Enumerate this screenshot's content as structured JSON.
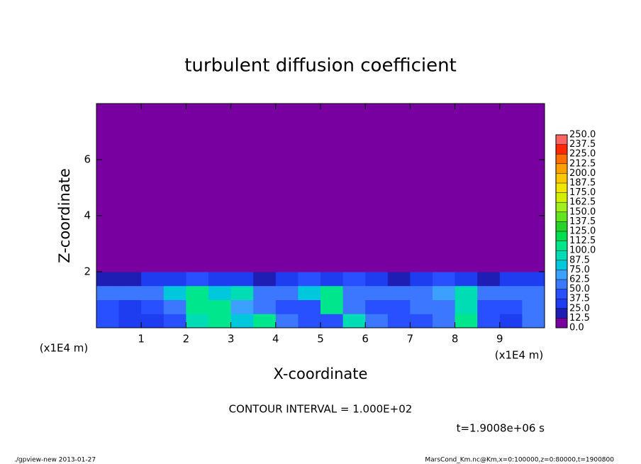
{
  "chart_data": {
    "type": "heatmap",
    "title": "turbulent diffusion coefficient",
    "x_label": "X-coordinate",
    "y_label": "Z-coordinate",
    "x_unit": "(x1E4 m)",
    "y_unit": "(x1E4 m)",
    "annotation": "CONTOUR INTERVAL = 1.000E+02",
    "time_label": "t=1.9008e+06 s",
    "footer_left": "./gpview-new  2013-01-27",
    "footer_right": "MarsCond_Km.nc@Km,x=0:100000,z=0:80000,t=1900800",
    "xlim": [
      0,
      10
    ],
    "ylim": [
      0,
      8
    ],
    "xticks": [
      1,
      2,
      3,
      4,
      5,
      6,
      7,
      8,
      9
    ],
    "yticks": [
      2,
      4,
      6
    ],
    "x": [
      0.25,
      0.75,
      1.25,
      1.75,
      2.25,
      2.75,
      3.25,
      3.75,
      4.25,
      4.75,
      5.25,
      5.75,
      6.25,
      6.75,
      7.25,
      7.75,
      8.25,
      8.75,
      9.25,
      9.75
    ],
    "y": [
      0.25,
      0.75,
      1.25,
      1.75,
      2.25,
      2.75,
      3.25,
      3.75,
      4.25,
      4.75,
      5.25,
      5.75,
      6.25,
      6.75,
      7.25,
      7.75
    ],
    "z": [
      [
        40,
        30,
        30,
        45,
        90,
        110,
        80,
        100,
        50,
        40,
        45,
        90,
        50,
        45,
        40,
        50,
        100,
        40,
        35,
        50
      ],
      [
        45,
        35,
        40,
        60,
        110,
        100,
        70,
        50,
        40,
        45,
        100,
        60,
        45,
        40,
        50,
        55,
        90,
        45,
        40,
        55
      ],
      [
        60,
        55,
        60,
        80,
        100,
        80,
        90,
        60,
        55,
        80,
        110,
        55,
        50,
        55,
        60,
        70,
        95,
        55,
        50,
        60
      ],
      [
        20,
        15,
        25,
        30,
        40,
        30,
        30,
        20,
        25,
        40,
        30,
        40,
        30,
        20,
        30,
        40,
        30,
        20,
        25,
        30
      ],
      [
        0,
        0,
        0,
        0,
        0,
        0,
        0,
        0,
        0,
        0,
        0,
        0,
        0,
        0,
        0,
        0,
        0,
        0,
        0,
        0
      ],
      [
        0,
        0,
        0,
        0,
        0,
        0,
        0,
        0,
        0,
        0,
        0,
        0,
        0,
        0,
        0,
        0,
        0,
        0,
        0,
        0
      ],
      [
        0,
        0,
        0,
        0,
        0,
        0,
        0,
        0,
        0,
        0,
        0,
        0,
        0,
        0,
        0,
        0,
        0,
        0,
        0,
        0
      ],
      [
        0,
        0,
        0,
        0,
        0,
        0,
        0,
        0,
        0,
        0,
        0,
        0,
        0,
        0,
        0,
        0,
        0,
        0,
        0,
        0
      ],
      [
        0,
        0,
        0,
        0,
        0,
        0,
        0,
        0,
        0,
        0,
        0,
        0,
        0,
        0,
        0,
        0,
        0,
        0,
        0,
        0
      ],
      [
        0,
        0,
        0,
        0,
        0,
        0,
        0,
        0,
        0,
        0,
        0,
        0,
        0,
        0,
        0,
        0,
        0,
        0,
        0,
        0
      ],
      [
        0,
        0,
        0,
        0,
        0,
        0,
        0,
        0,
        0,
        0,
        0,
        0,
        0,
        0,
        0,
        0,
        0,
        0,
        0,
        0
      ],
      [
        0,
        0,
        0,
        0,
        0,
        0,
        0,
        0,
        0,
        0,
        0,
        0,
        0,
        0,
        0,
        0,
        0,
        0,
        0,
        0
      ],
      [
        0,
        0,
        0,
        0,
        0,
        0,
        0,
        0,
        0,
        0,
        0,
        0,
        0,
        0,
        0,
        0,
        0,
        0,
        0,
        0
      ],
      [
        0,
        0,
        0,
        0,
        0,
        0,
        0,
        0,
        0,
        0,
        0,
        0,
        0,
        0,
        0,
        0,
        0,
        0,
        0,
        0
      ],
      [
        0,
        0,
        0,
        0,
        0,
        0,
        0,
        0,
        0,
        0,
        0,
        0,
        0,
        0,
        0,
        0,
        0,
        0,
        0,
        0
      ],
      [
        0,
        0,
        0,
        0,
        0,
        0,
        0,
        0,
        0,
        0,
        0,
        0,
        0,
        0,
        0,
        0,
        0,
        0,
        0,
        0
      ]
    ],
    "colorbar": {
      "ticks": [
        {
          "value": 0,
          "label": "0.0"
        },
        {
          "value": 12.5,
          "label": "12.5"
        },
        {
          "value": 25,
          "label": "25.0"
        },
        {
          "value": 37.5,
          "label": "37.5"
        },
        {
          "value": 50,
          "label": "50.0"
        },
        {
          "value": 62.5,
          "label": "62.5"
        },
        {
          "value": 75,
          "label": "75.0"
        },
        {
          "value": 87.5,
          "label": "87.5"
        },
        {
          "value": 100,
          "label": "100.0"
        },
        {
          "value": 112.5,
          "label": "112.5"
        },
        {
          "value": 125,
          "label": "125.0"
        },
        {
          "value": 137.5,
          "label": "137.5"
        },
        {
          "value": 150,
          "label": "150.0"
        },
        {
          "value": 162.5,
          "label": "162.5"
        },
        {
          "value": 175,
          "label": "175.0"
        },
        {
          "value": 187.5,
          "label": "187.5"
        },
        {
          "value": 200,
          "label": "200.0"
        },
        {
          "value": 212.5,
          "label": "212.5"
        },
        {
          "value": 225,
          "label": "225.0"
        },
        {
          "value": 237.5,
          "label": "237.5"
        },
        {
          "value": 250,
          "label": "250.0"
        }
      ],
      "colors": [
        "#7800a0",
        "#1e1eb4",
        "#1e3cf0",
        "#2850ff",
        "#3c78ff",
        "#3ca0ff",
        "#00c8dc",
        "#00dcb4",
        "#00e68c",
        "#00dc50",
        "#28d228",
        "#64e61e",
        "#a0f01e",
        "#d2f000",
        "#f0e600",
        "#ffc800",
        "#ffa000",
        "#ff6e00",
        "#ff2800",
        "#ff6464"
      ]
    }
  }
}
